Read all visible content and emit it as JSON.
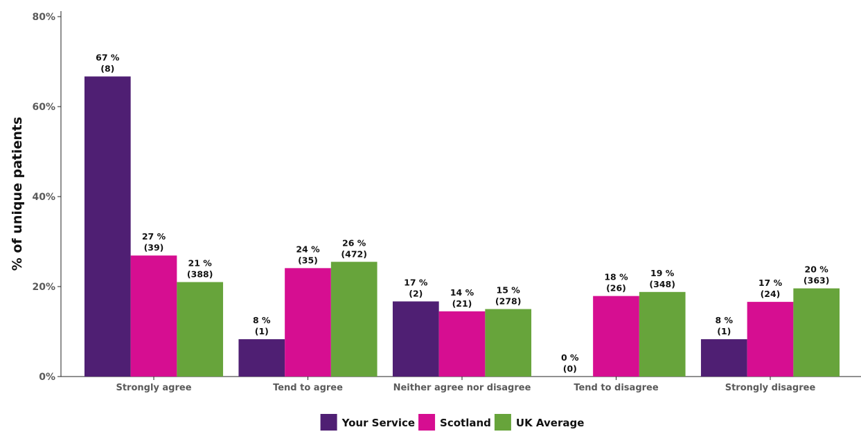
{
  "chart_data": {
    "type": "bar",
    "title": "",
    "xlabel": "",
    "ylabel": "% of unique patients",
    "ylim": [
      0,
      80
    ],
    "yticks": [
      "0%",
      "20%",
      "40%",
      "60%",
      "80%"
    ],
    "ytick_values": [
      0,
      20,
      40,
      60,
      80
    ],
    "grid": false,
    "legend_position": "bottom",
    "categories": [
      "Strongly agree",
      "Tend to agree",
      "Neither agree nor disagree",
      "Tend to disagree",
      "Strongly disagree"
    ],
    "series": [
      {
        "name": "Your Service",
        "color": "#4f1f73",
        "values": [
          66.7,
          8.3,
          16.7,
          0,
          8.3
        ],
        "labels": [
          "67 %",
          "8 %",
          "17 %",
          "0 %",
          "8 %"
        ],
        "counts": [
          "(8)",
          "(1)",
          "(2)",
          "(0)",
          "(1)"
        ]
      },
      {
        "name": "Scotland",
        "color": "#d60e91",
        "values": [
          26.9,
          24.1,
          14.5,
          17.9,
          16.6
        ],
        "labels": [
          "27 %",
          "24 %",
          "14 %",
          "18 %",
          "17 %"
        ],
        "counts": [
          "(39)",
          "(35)",
          "(21)",
          "(26)",
          "(24)"
        ]
      },
      {
        "name": "UK Average",
        "color": "#67a43b",
        "values": [
          21.0,
          25.5,
          15.0,
          18.8,
          19.6
        ],
        "labels": [
          "21 %",
          "26 %",
          "15 %",
          "19 %",
          "20 %"
        ],
        "counts": [
          "(388)",
          "(472)",
          "(278)",
          "(348)",
          "(363)"
        ]
      }
    ]
  }
}
